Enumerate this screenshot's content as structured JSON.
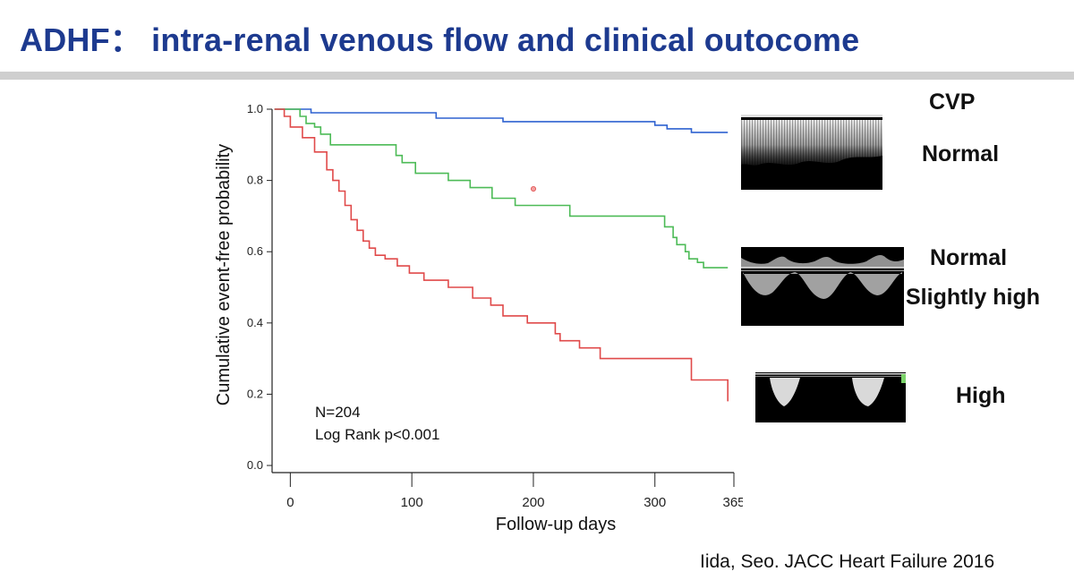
{
  "slide": {
    "title": "ADHF： intra-renal venous flow and clinical outocome",
    "citation": "Iida, Seo.  JACC Heart Failure 2016"
  },
  "legend_labels": {
    "header": "CVP",
    "normal": "Normal",
    "normal_slightly_high_line1": "Normal",
    "normal_slightly_high_line2": "Slightly high",
    "high": "High"
  },
  "chart_data": {
    "type": "line",
    "subtype": "kaplan-meier-step",
    "xlabel": "Follow-up days",
    "ylabel": "Cumulative event-free probability",
    "xticks": [
      {
        "value": 0,
        "label": "0"
      },
      {
        "value": 100,
        "label": "100"
      },
      {
        "value": 200,
        "label": "200"
      },
      {
        "value": 300,
        "label": "300"
      },
      {
        "value": 365,
        "label": "365"
      }
    ],
    "yticks": [
      {
        "value": 0.0,
        "label": "0.0"
      },
      {
        "value": 0.2,
        "label": "0.2"
      },
      {
        "value": 0.4,
        "label": "0.4"
      },
      {
        "value": 0.6,
        "label": "0.6"
      },
      {
        "value": 0.8,
        "label": "0.8"
      },
      {
        "value": 1.0,
        "label": "1.0"
      }
    ],
    "xlim": [
      -15,
      365
    ],
    "ylim": [
      -0.02,
      1.0
    ],
    "grid": false,
    "annotations": [
      "N=204",
      "Log Rank p<0.001"
    ],
    "series": [
      {
        "color": "#2f62d0",
        "x": [
          -13,
          5,
          17,
          40,
          70,
          110,
          120,
          160,
          175,
          250,
          300,
          310,
          330,
          360
        ],
        "y": [
          1.0,
          1.0,
          0.99,
          0.99,
          0.99,
          0.99,
          0.975,
          0.975,
          0.965,
          0.965,
          0.955,
          0.945,
          0.935,
          0.935
        ]
      },
      {
        "color": "#4dbb57",
        "x": [
          -13,
          2,
          8,
          13,
          20,
          25,
          33,
          83,
          87,
          92,
          103,
          130,
          148,
          166,
          185,
          230,
          245,
          290,
          308,
          315,
          318,
          325,
          328,
          335,
          340,
          360
        ],
        "y": [
          1.0,
          1.0,
          0.98,
          0.96,
          0.95,
          0.93,
          0.9,
          0.9,
          0.87,
          0.85,
          0.82,
          0.8,
          0.78,
          0.75,
          0.73,
          0.7,
          0.7,
          0.7,
          0.67,
          0.64,
          0.62,
          0.6,
          0.58,
          0.57,
          0.555,
          0.555
        ]
      },
      {
        "color": "#e04a4a",
        "x": [
          -13,
          -5,
          0,
          10,
          20,
          30,
          35,
          40,
          45,
          50,
          55,
          60,
          65,
          70,
          78,
          88,
          98,
          110,
          130,
          150,
          165,
          175,
          195,
          218,
          222,
          238,
          255,
          298,
          320,
          330,
          360
        ],
        "y": [
          1.0,
          0.98,
          0.95,
          0.92,
          0.88,
          0.83,
          0.8,
          0.77,
          0.73,
          0.69,
          0.66,
          0.63,
          0.61,
          0.59,
          0.58,
          0.56,
          0.54,
          0.52,
          0.5,
          0.47,
          0.45,
          0.42,
          0.4,
          0.37,
          0.35,
          0.33,
          0.3,
          0.3,
          0.3,
          0.24,
          0.18
        ]
      }
    ]
  }
}
